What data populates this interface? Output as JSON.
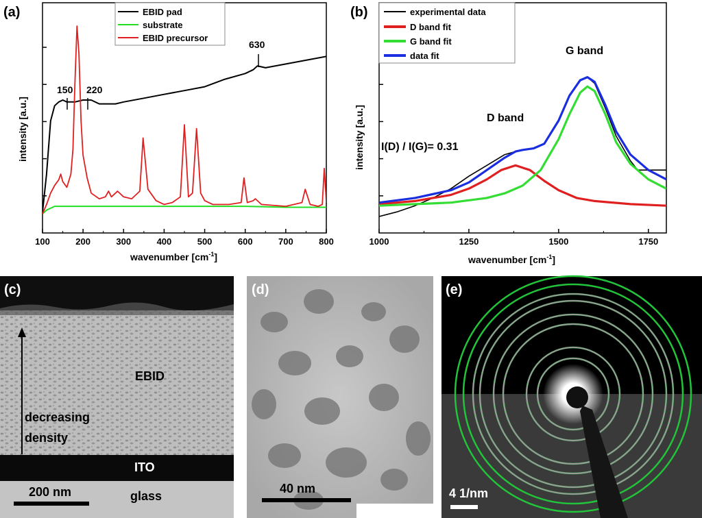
{
  "panels": {
    "a": {
      "label": "(a)",
      "xlabel": "wavenumber [cm",
      "xlabel_sup": "-1",
      "xlabel_end": "]",
      "ylabel": "intensity [a.u.]",
      "legend": [
        "EBID pad",
        "substrate",
        "EBID precursor"
      ],
      "annotations": [
        "150",
        "220",
        "630"
      ]
    },
    "b": {
      "label": "(b)",
      "xlabel": "wavenumber [cm",
      "xlabel_sup": "-1",
      "xlabel_end": "]",
      "ylabel": "intensity [a.u.]",
      "legend": [
        "experimental data",
        "D band fit",
        "G band fit",
        "data fit"
      ],
      "annotations": {
        "d_band": "D band",
        "g_band": "G band",
        "ratio": "I(D) / I(G)= 0.31"
      }
    },
    "c": {
      "label": "(c)",
      "ebid": "EBID",
      "density_line1": "decreasing",
      "density_line2": "density",
      "ito": "ITO",
      "glass": "glass",
      "scalebar": "200 nm"
    },
    "d": {
      "label": "(d)",
      "scalebar": "40 nm"
    },
    "e": {
      "label": "(e)",
      "scalebar": "4 1/nm"
    }
  },
  "chart_data": [
    {
      "type": "line",
      "panel": "a",
      "xlabel": "wavenumber [cm-1]",
      "ylabel": "intensity [a.u.]",
      "xlim": [
        100,
        800
      ],
      "xticks": [
        100,
        200,
        300,
        400,
        500,
        600,
        700,
        800
      ],
      "y_tick_labels_shown": false,
      "legend_position": "top-center",
      "colors": {
        "EBID pad": "#000000",
        "substrate": "#22dd22",
        "EBID precursor": "#e02020"
      },
      "series": [
        {
          "name": "EBID pad",
          "x": [
            100,
            110,
            120,
            130,
            140,
            150,
            160,
            180,
            200,
            220,
            240,
            260,
            280,
            300,
            350,
            400,
            450,
            500,
            550,
            600,
            620,
            630,
            650,
            700,
            750,
            800
          ],
          "y": [
            0.02,
            0.22,
            0.5,
            0.58,
            0.6,
            0.61,
            0.6,
            0.6,
            0.61,
            0.61,
            0.59,
            0.59,
            0.59,
            0.6,
            0.62,
            0.64,
            0.66,
            0.68,
            0.72,
            0.75,
            0.77,
            0.79,
            0.78,
            0.8,
            0.82,
            0.84
          ]
        },
        {
          "name": "substrate",
          "x": [
            100,
            110,
            130,
            150,
            200,
            300,
            400,
            500,
            600,
            700,
            800
          ],
          "y": [
            0.01,
            0.03,
            0.05,
            0.05,
            0.05,
            0.05,
            0.05,
            0.05,
            0.05,
            0.045,
            0.045
          ]
        },
        {
          "name": "EBID precursor",
          "x": [
            100,
            110,
            120,
            130,
            140,
            145,
            150,
            160,
            170,
            175,
            180,
            185,
            190,
            195,
            200,
            210,
            220,
            240,
            255,
            263,
            270,
            280,
            285,
            300,
            320,
            340,
            348,
            360,
            380,
            400,
            420,
            440,
            450,
            460,
            470,
            480,
            490,
            500,
            520,
            560,
            590,
            597,
            605,
            620,
            625,
            640,
            700,
            740,
            748,
            760,
            780,
            790,
            795,
            800
          ],
          "y": [
            0.01,
            0.06,
            0.12,
            0.16,
            0.19,
            0.22,
            0.18,
            0.15,
            0.22,
            0.35,
            0.7,
            1.0,
            0.85,
            0.5,
            0.32,
            0.2,
            0.12,
            0.09,
            0.1,
            0.13,
            0.1,
            0.12,
            0.13,
            0.1,
            0.09,
            0.13,
            0.41,
            0.14,
            0.08,
            0.06,
            0.07,
            0.1,
            0.48,
            0.1,
            0.12,
            0.46,
            0.12,
            0.08,
            0.06,
            0.06,
            0.07,
            0.2,
            0.07,
            0.08,
            0.09,
            0.06,
            0.05,
            0.07,
            0.14,
            0.06,
            0.05,
            0.06,
            0.25,
            0.07
          ]
        }
      ]
    },
    {
      "type": "line",
      "panel": "b",
      "xlabel": "wavenumber [cm -1]",
      "ylabel": "intensity [a.u.]",
      "xlim": [
        1000,
        1800
      ],
      "xticks": [
        1000,
        1250,
        1500,
        1750
      ],
      "y_tick_labels_shown": false,
      "legend_position": "top-left",
      "colors": {
        "experimental data": "#000000",
        "D band fit": "#e02020",
        "G band fit": "#33dd33",
        "data fit": "#1a2ee0"
      },
      "series": [
        {
          "name": "experimental data",
          "x": [
            1000,
            1050,
            1100,
            1150,
            1200,
            1250,
            1300,
            1350,
            1380,
            1400,
            1430,
            1460,
            1500,
            1530,
            1560,
            1580,
            1600,
            1630,
            1660,
            1700,
            1720,
            1750,
            1800
          ],
          "y": [
            0.0,
            0.03,
            0.07,
            0.12,
            0.18,
            0.26,
            0.33,
            0.4,
            0.42,
            0.43,
            0.44,
            0.47,
            0.62,
            0.78,
            0.88,
            0.9,
            0.86,
            0.7,
            0.52,
            0.36,
            0.3,
            0.3,
            0.3
          ]
        },
        {
          "name": "D band fit",
          "x": [
            1000,
            1100,
            1200,
            1250,
            1300,
            1340,
            1380,
            1420,
            1460,
            1500,
            1550,
            1600,
            1700,
            1800
          ],
          "y": [
            0.08,
            0.1,
            0.14,
            0.18,
            0.24,
            0.3,
            0.33,
            0.3,
            0.23,
            0.17,
            0.12,
            0.1,
            0.08,
            0.07
          ]
        },
        {
          "name": "G band fit",
          "x": [
            1000,
            1100,
            1200,
            1300,
            1350,
            1400,
            1450,
            1500,
            1530,
            1560,
            1580,
            1600,
            1630,
            1660,
            1700,
            1750,
            1800
          ],
          "y": [
            0.07,
            0.08,
            0.09,
            0.12,
            0.15,
            0.2,
            0.3,
            0.5,
            0.66,
            0.8,
            0.84,
            0.81,
            0.66,
            0.48,
            0.34,
            0.24,
            0.18
          ]
        },
        {
          "name": "data fit",
          "x": [
            1000,
            1100,
            1200,
            1250,
            1300,
            1350,
            1380,
            1400,
            1430,
            1460,
            1500,
            1530,
            1560,
            1580,
            1600,
            1630,
            1660,
            1700,
            1750,
            1800
          ],
          "y": [
            0.09,
            0.12,
            0.17,
            0.22,
            0.3,
            0.38,
            0.42,
            0.43,
            0.44,
            0.47,
            0.62,
            0.78,
            0.88,
            0.9,
            0.87,
            0.72,
            0.55,
            0.4,
            0.3,
            0.24
          ]
        }
      ]
    }
  ]
}
